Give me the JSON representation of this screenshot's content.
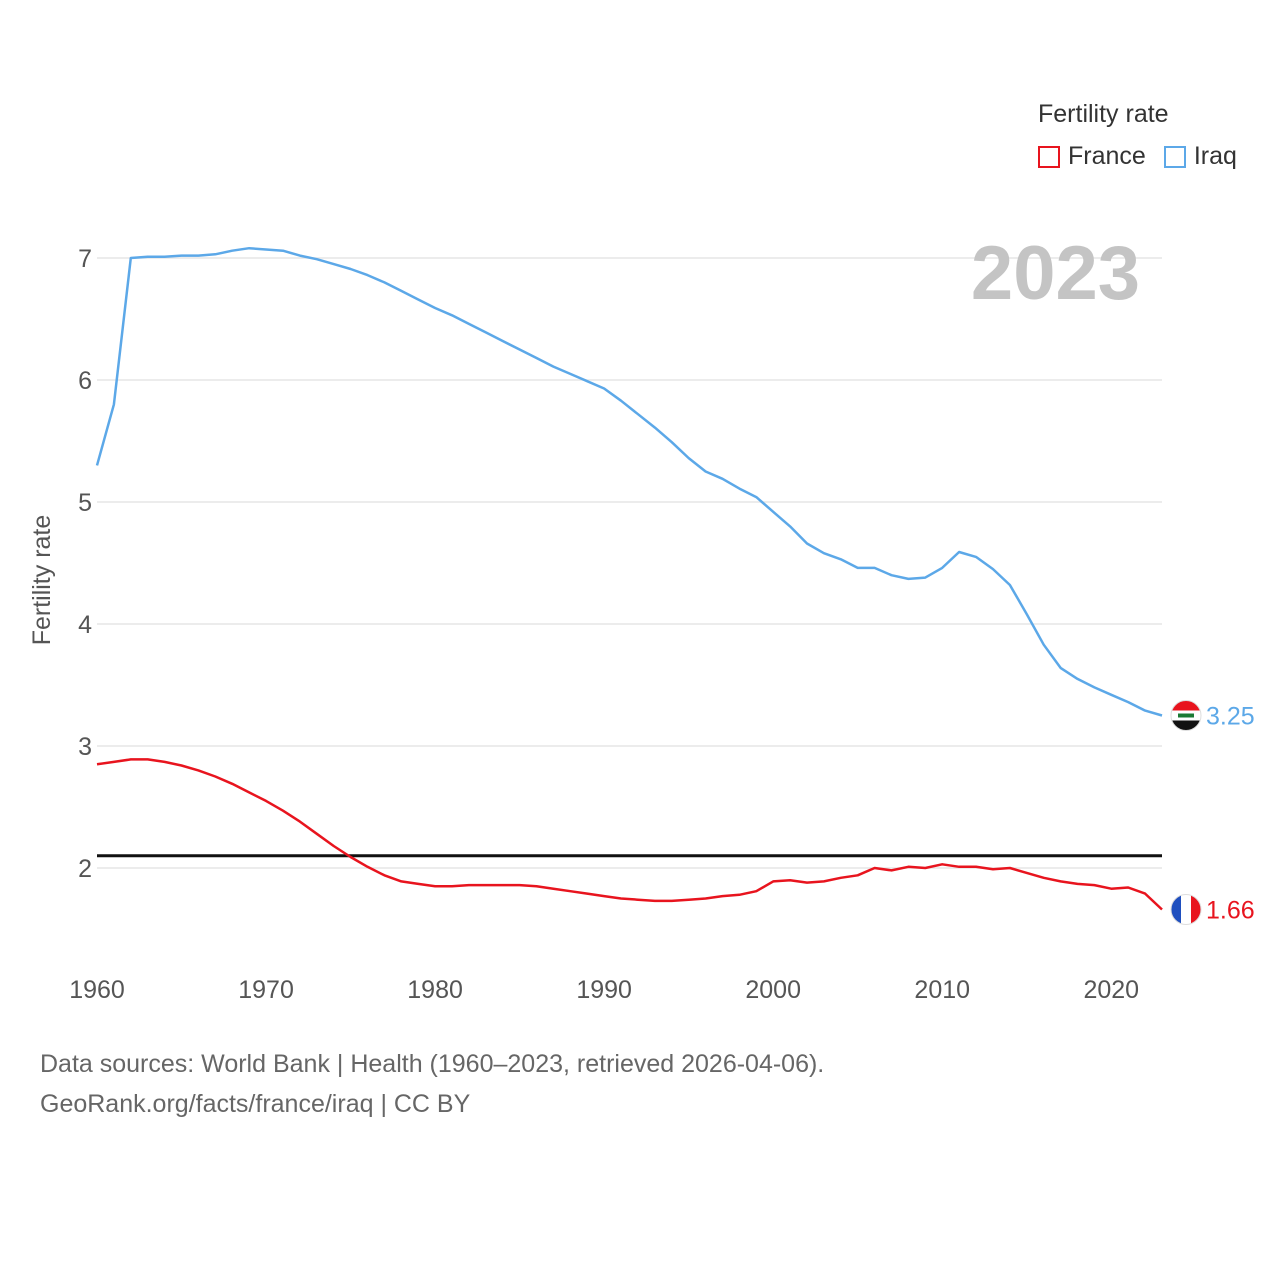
{
  "legend": {
    "title": "Fertility rate",
    "items": [
      {
        "label": "France",
        "color": "#e8141e"
      },
      {
        "label": "Iraq",
        "color": "#5ca8e8"
      }
    ]
  },
  "year_label": "2023",
  "footer": {
    "line1": "Data sources: World Bank | Health (1960–2023, retrieved 2026-04-06).",
    "line2": "GeoRank.org/facts/france/iraq | CC BY"
  },
  "chart_data": {
    "type": "line",
    "title": "Fertility rate",
    "xlabel": "",
    "ylabel": "Fertility rate",
    "xlim": [
      1960,
      2023
    ],
    "ylim": [
      1.37,
      7.1
    ],
    "x_ticks": [
      1960,
      1970,
      1980,
      1990,
      2000,
      2010,
      2020
    ],
    "y_ticks": [
      2,
      3,
      4,
      5,
      6,
      7
    ],
    "grid": true,
    "reference_line": {
      "value": 2.1,
      "label": ""
    },
    "x": [
      1960,
      1961,
      1962,
      1963,
      1964,
      1965,
      1966,
      1967,
      1968,
      1969,
      1970,
      1971,
      1972,
      1973,
      1974,
      1975,
      1976,
      1977,
      1978,
      1979,
      1980,
      1981,
      1982,
      1983,
      1984,
      1985,
      1986,
      1987,
      1988,
      1989,
      1990,
      1991,
      1992,
      1993,
      1994,
      1995,
      1996,
      1997,
      1998,
      1999,
      2000,
      2001,
      2002,
      2003,
      2004,
      2005,
      2006,
      2007,
      2008,
      2009,
      2010,
      2011,
      2012,
      2013,
      2014,
      2015,
      2016,
      2017,
      2018,
      2019,
      2020,
      2021,
      2022,
      2023
    ],
    "series": [
      {
        "name": "France",
        "color": "#e8141e",
        "end_label": "1.66",
        "flag": "france-flag",
        "values": [
          2.85,
          2.87,
          2.89,
          2.89,
          2.87,
          2.84,
          2.8,
          2.75,
          2.69,
          2.62,
          2.55,
          2.47,
          2.38,
          2.28,
          2.18,
          2.09,
          2.01,
          1.94,
          1.89,
          1.87,
          1.85,
          1.85,
          1.86,
          1.86,
          1.86,
          1.86,
          1.85,
          1.83,
          1.81,
          1.79,
          1.77,
          1.75,
          1.74,
          1.73,
          1.73,
          1.74,
          1.75,
          1.77,
          1.78,
          1.81,
          1.89,
          1.9,
          1.88,
          1.89,
          1.92,
          1.94,
          2.0,
          1.98,
          2.01,
          2.0,
          2.03,
          2.01,
          2.01,
          1.99,
          2.0,
          1.96,
          1.92,
          1.89,
          1.87,
          1.86,
          1.83,
          1.84,
          1.79,
          1.66
        ]
      },
      {
        "name": "Iraq",
        "color": "#5ca8e8",
        "end_label": "3.25",
        "flag": "iraq-flag",
        "values": [
          5.3,
          5.8,
          7.0,
          7.01,
          7.01,
          7.02,
          7.02,
          7.03,
          7.06,
          7.08,
          7.07,
          7.06,
          7.02,
          6.99,
          6.95,
          6.91,
          6.86,
          6.8,
          6.73,
          6.66,
          6.59,
          6.53,
          6.46,
          6.39,
          6.32,
          6.25,
          6.18,
          6.11,
          6.05,
          5.99,
          5.93,
          5.83,
          5.72,
          5.61,
          5.49,
          5.36,
          5.25,
          5.19,
          5.11,
          5.04,
          4.92,
          4.8,
          4.66,
          4.58,
          4.53,
          4.46,
          4.46,
          4.4,
          4.37,
          4.38,
          4.46,
          4.59,
          4.55,
          4.45,
          4.32,
          4.08,
          3.83,
          3.64,
          3.55,
          3.48,
          3.42,
          3.36,
          3.29,
          3.25
        ]
      }
    ]
  }
}
